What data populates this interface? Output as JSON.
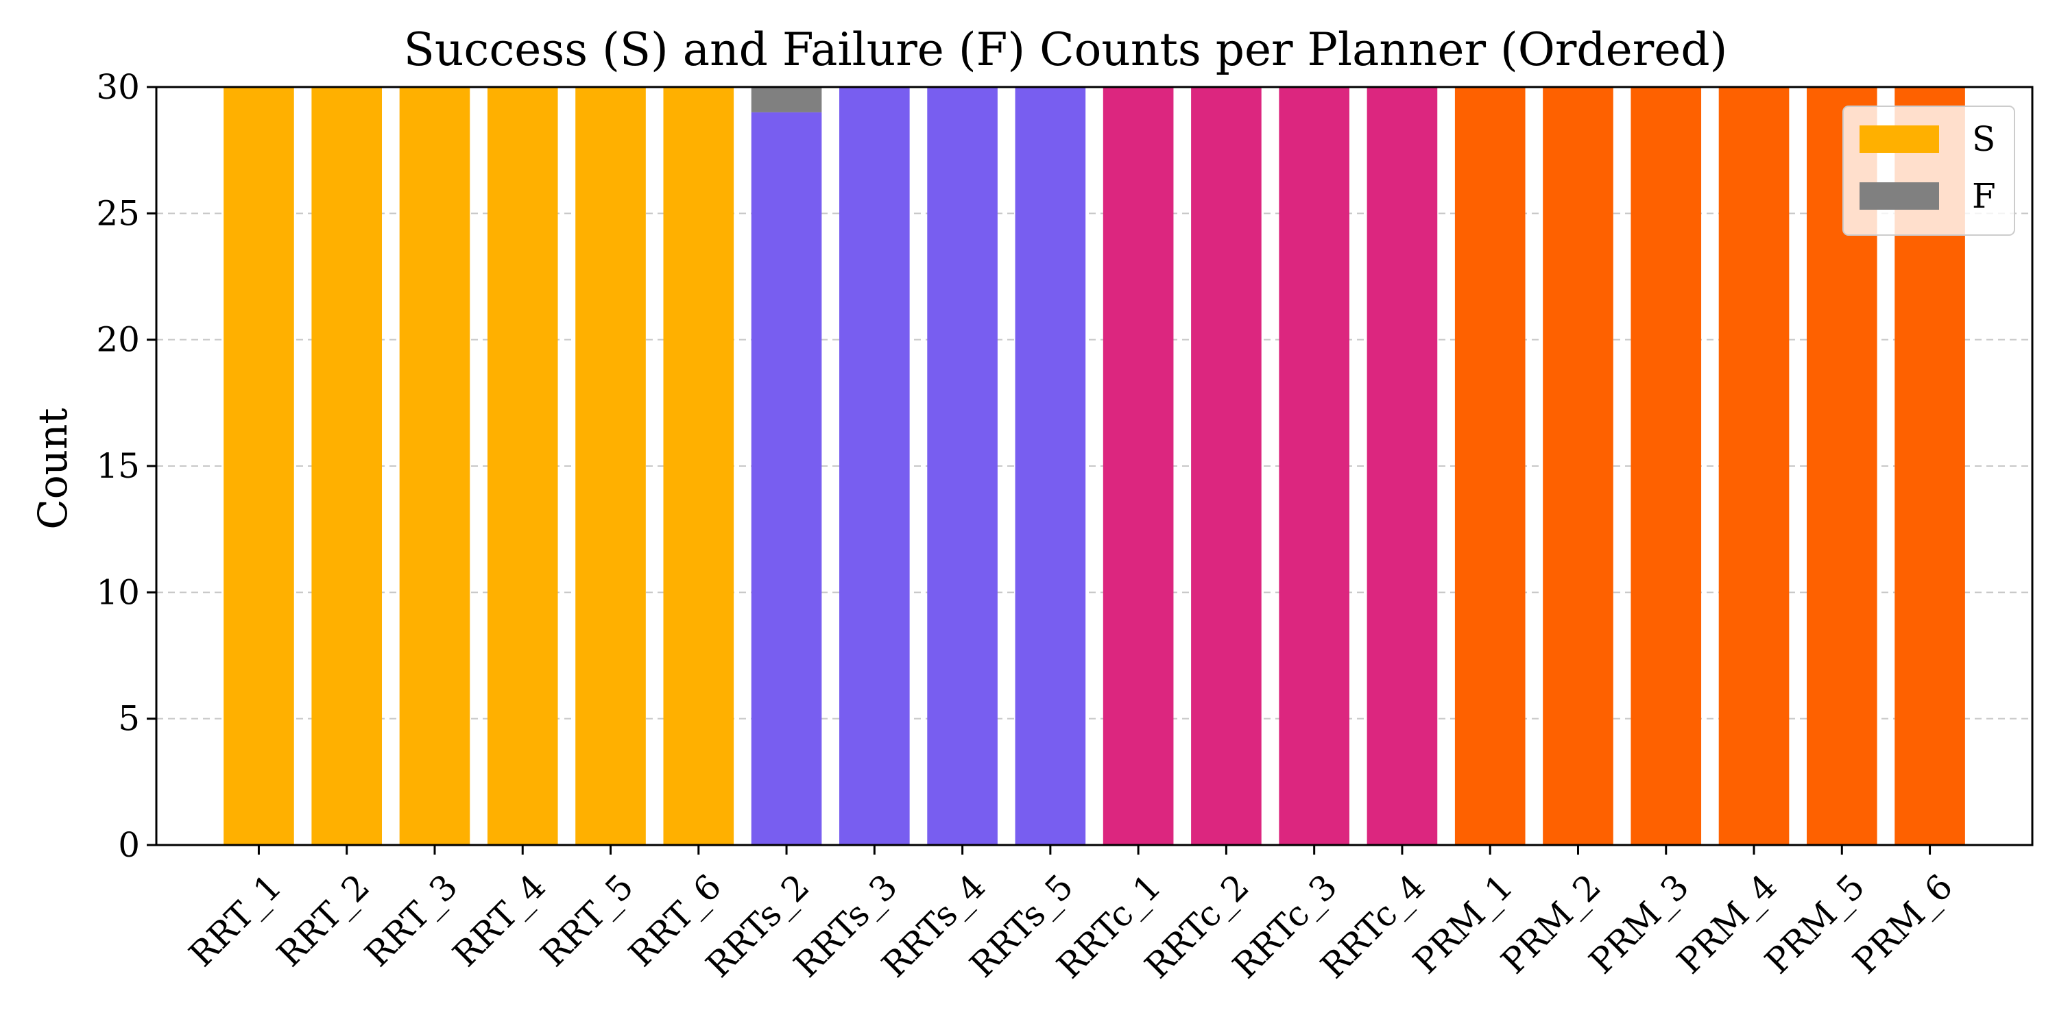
{
  "chart_data": {
    "type": "bar",
    "stacked": true,
    "title": "Success (S) and Failure (F) Counts per Planner (Ordered)",
    "xlabel": "",
    "ylabel": "Count",
    "ylim": [
      0,
      30
    ],
    "yticks": [
      0,
      5,
      10,
      15,
      20,
      25,
      30
    ],
    "grid": "y-dashed",
    "legend_position": "top-right",
    "categories": [
      "RRT_1",
      "RRT_2",
      "RRT_3",
      "RRT_4",
      "RRT_5",
      "RRT_6",
      "RRTs_2",
      "RRTs_3",
      "RRTs_4",
      "RRTs_5",
      "RRTc_1",
      "RRTc_2",
      "RRTc_3",
      "RRTc_4",
      "PRM_1",
      "PRM_2",
      "PRM_3",
      "PRM_4",
      "PRM_5",
      "PRM_6"
    ],
    "bar_colors": [
      "#ffb000",
      "#ffb000",
      "#ffb000",
      "#ffb000",
      "#ffb000",
      "#ffb000",
      "#785ef0",
      "#785ef0",
      "#785ef0",
      "#785ef0",
      "#dc267f",
      "#dc267f",
      "#dc267f",
      "#dc267f",
      "#fe6100",
      "#fe6100",
      "#fe6100",
      "#fe6100",
      "#fe6100",
      "#fe6100"
    ],
    "series": [
      {
        "name": "S",
        "legend_color": "#ffb000",
        "values": [
          30,
          30,
          30,
          30,
          30,
          30,
          29,
          30,
          30,
          30,
          30,
          30,
          30,
          30,
          30,
          30,
          30,
          30,
          30,
          30
        ]
      },
      {
        "name": "F",
        "color": "#808080",
        "legend_color": "#808080",
        "values": [
          0,
          0,
          0,
          0,
          0,
          0,
          1,
          0,
          0,
          0,
          0,
          0,
          0,
          0,
          0,
          0,
          0,
          0,
          0,
          0
        ]
      }
    ]
  }
}
